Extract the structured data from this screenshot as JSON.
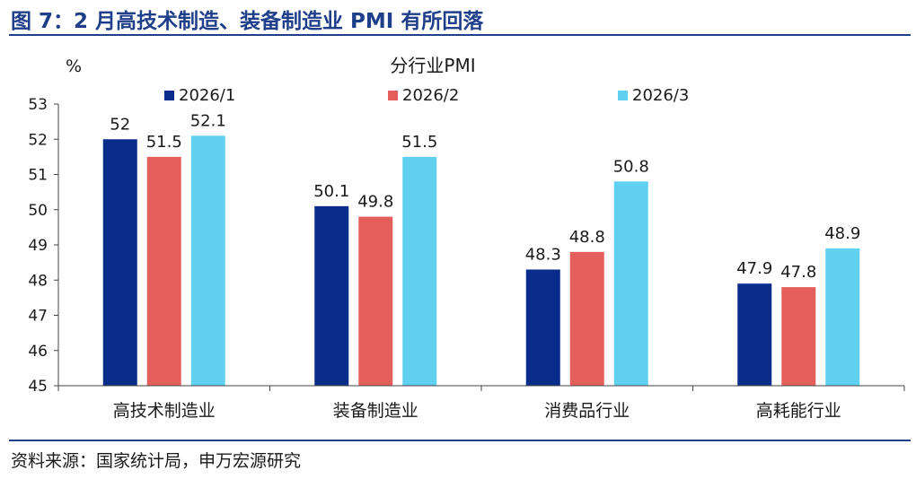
{
  "figure_title": "图 7：2 月高技术制造、装备制造业 PMI 有所回落",
  "source": "资料来源：国家统计局，申万宏源研究",
  "colors": {
    "title": "#1f3f8a",
    "series": [
      "#0a2d8c",
      "#e45f5c",
      "#5fd0f0"
    ],
    "axis": "#444444"
  },
  "chart_data": {
    "type": "bar",
    "title": "分行业PMI",
    "ylabel": "%",
    "xlabel": "",
    "ylim": [
      45,
      53
    ],
    "yticks": [
      45,
      46,
      47,
      48,
      49,
      50,
      51,
      52,
      53
    ],
    "grid": false,
    "legend_position": "top",
    "categories": [
      "高技术制造业",
      "装备制造业",
      "消费品行业",
      "高耗能行业"
    ],
    "series": [
      {
        "name": "2026/1",
        "values": [
          52,
          50.1,
          48.3,
          47.9
        ],
        "labels": [
          "52",
          "50.1",
          "48.3",
          "47.9"
        ]
      },
      {
        "name": "2026/2",
        "values": [
          51.5,
          49.8,
          48.8,
          47.8
        ],
        "labels": [
          "51.5",
          "49.8",
          "48.8",
          "47.8"
        ]
      },
      {
        "name": "2026/3",
        "values": [
          52.1,
          51.5,
          50.8,
          48.9
        ],
        "labels": [
          "52.1",
          "51.5",
          "50.8",
          "48.9"
        ]
      }
    ]
  }
}
